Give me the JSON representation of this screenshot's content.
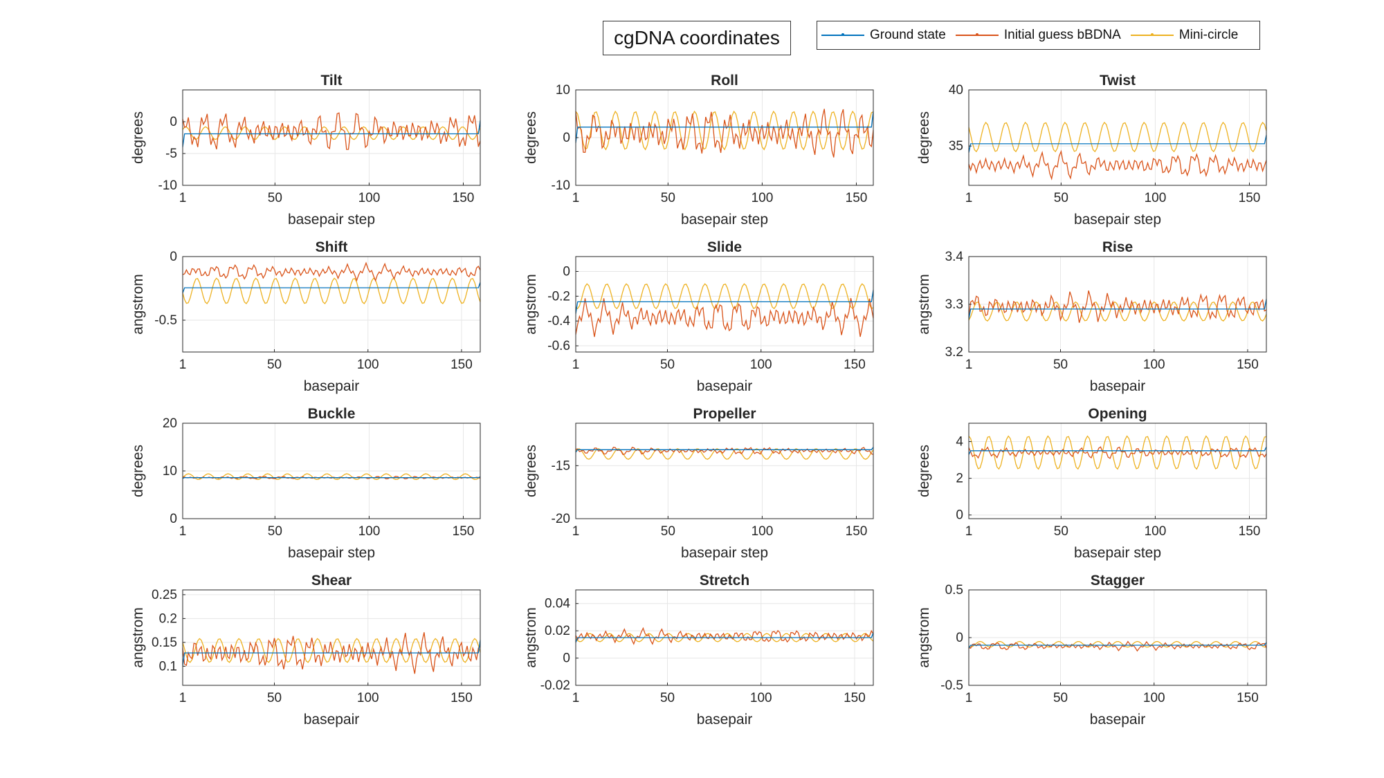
{
  "figure_title": "cgDNA coordinates",
  "legend": {
    "entries": [
      {
        "name": "Ground state",
        "color": "#0072BD"
      },
      {
        "name": "Initial guess bBDNA",
        "color": "#D95319"
      },
      {
        "name": "Mini-circle",
        "color": "#EDB120"
      }
    ],
    "placement": "top-right"
  },
  "chart_data": [
    {
      "type": "line",
      "title": "Tilt",
      "xlabel": "basepair step",
      "ylabel": "degrees",
      "xlim": [
        1,
        159
      ],
      "ylim": [
        -10,
        5
      ],
      "xticks": [
        "1",
        "50",
        "100",
        "150"
      ],
      "yticks": [
        "-10",
        "-5",
        "0"
      ],
      "ytick_values": [
        -10,
        -5,
        0
      ],
      "grid": true,
      "ground": -1.9,
      "initial": {
        "mean": -1.5,
        "amp": 3.5
      },
      "minicircle": {
        "mean": -1.8,
        "amp": 1.0
      }
    },
    {
      "type": "line",
      "title": "Roll",
      "xlabel": "basepair step",
      "ylabel": "degrees",
      "xlim": [
        1,
        159
      ],
      "ylim": [
        -10,
        10
      ],
      "xticks": [
        "1",
        "50",
        "100",
        "150"
      ],
      "yticks": [
        "-10",
        "0",
        "10"
      ],
      "ytick_values": [
        -10,
        0,
        10
      ],
      "grid": true,
      "ground": 2.2,
      "initial": {
        "mean": 1.0,
        "amp": 5.5
      },
      "minicircle": {
        "mean": 1.5,
        "amp": 4.0
      }
    },
    {
      "type": "line",
      "title": "Twist",
      "xlabel": "basepair step",
      "ylabel": "degrees",
      "xlim": [
        1,
        159
      ],
      "ylim": [
        31.5,
        40
      ],
      "xticks": [
        "1",
        "50",
        "100",
        "150"
      ],
      "yticks": [
        "35",
        "40"
      ],
      "ytick_values": [
        35,
        40
      ],
      "grid": true,
      "ground": 35.2,
      "initial": {
        "mean": 33.3,
        "amp": 1.3
      },
      "minicircle": {
        "mean": 35.8,
        "amp": 1.3
      }
    },
    {
      "type": "line",
      "title": "Shift",
      "xlabel": "basepair",
      "ylabel": "angstrom",
      "xlim": [
        1,
        160
      ],
      "ylim": [
        -0.75,
        0
      ],
      "xticks": [
        "1",
        "50",
        "100",
        "150"
      ],
      "yticks": [
        "-0.5",
        "0"
      ],
      "ytick_values": [
        -0.5,
        0
      ],
      "grid": true,
      "ground": -0.245,
      "initial": {
        "mean": -0.12,
        "amp": 0.07
      },
      "minicircle": {
        "mean": -0.27,
        "amp": 0.1
      }
    },
    {
      "type": "line",
      "title": "Slide",
      "xlabel": "basepair",
      "ylabel": "angstrom",
      "xlim": [
        1,
        160
      ],
      "ylim": [
        -0.65,
        0.12
      ],
      "xticks": [
        "1",
        "50",
        "100",
        "150"
      ],
      "yticks": [
        "-0.6",
        "-0.4",
        "-0.2",
        "0"
      ],
      "ytick_values": [
        -0.6,
        -0.4,
        -0.2,
        0
      ],
      "grid": true,
      "ground": -0.245,
      "initial": {
        "mean": -0.37,
        "amp": 0.16
      },
      "minicircle": {
        "mean": -0.2,
        "amp": 0.1
      }
    },
    {
      "type": "line",
      "title": "Rise",
      "xlabel": "basepair",
      "ylabel": "angstrom",
      "xlim": [
        1,
        160
      ],
      "ylim": [
        3.2,
        3.4
      ],
      "xticks": [
        "1",
        "50",
        "100",
        "150"
      ],
      "yticks": [
        "3.2",
        "3.3",
        "3.4"
      ],
      "ytick_values": [
        3.2,
        3.3,
        3.4
      ],
      "grid": true,
      "ground": 3.29,
      "initial": {
        "mean": 3.295,
        "amp": 0.035
      },
      "minicircle": {
        "mean": 3.285,
        "amp": 0.02
      }
    },
    {
      "type": "line",
      "title": "Buckle",
      "xlabel": "basepair step",
      "ylabel": "degrees",
      "xlim": [
        1,
        159
      ],
      "ylim": [
        0,
        20
      ],
      "xticks": [
        "1",
        "50",
        "100",
        "150"
      ],
      "yticks": [
        "0",
        "10",
        "20"
      ],
      "ytick_values": [
        0,
        10,
        20
      ],
      "grid": true,
      "ground": 8.6,
      "initial": {
        "mean": 8.6,
        "amp": 0.3
      },
      "minicircle": {
        "mean": 8.8,
        "amp": 0.6
      }
    },
    {
      "type": "line",
      "title": "Propeller",
      "xlabel": "basepair step",
      "ylabel": "degrees",
      "xlim": [
        1,
        159
      ],
      "ylim": [
        -20,
        -11
      ],
      "xticks": [
        "1",
        "50",
        "100",
        "150"
      ],
      "yticks": [
        "-20",
        "-15"
      ],
      "ytick_values": [
        -20,
        -15
      ],
      "grid": true,
      "ground": -13.5,
      "initial": {
        "mean": -13.6,
        "amp": 0.4
      },
      "minicircle": {
        "mean": -13.9,
        "amp": 0.5
      }
    },
    {
      "type": "line",
      "title": "Opening",
      "xlabel": "basepair step",
      "ylabel": "degrees",
      "xlim": [
        1,
        159
      ],
      "ylim": [
        -0.2,
        5
      ],
      "xticks": [
        "1",
        "50",
        "100",
        "150"
      ],
      "yticks": [
        "0",
        "2",
        "4"
      ],
      "ytick_values": [
        0,
        2,
        4
      ],
      "grid": true,
      "ground": 3.5,
      "initial": {
        "mean": 3.4,
        "amp": 0.35
      },
      "minicircle": {
        "mean": 3.4,
        "amp": 0.9
      }
    },
    {
      "type": "line",
      "title": "Shear",
      "xlabel": "basepair",
      "ylabel": "angstrom",
      "xlim": [
        1,
        160
      ],
      "ylim": [
        0.06,
        0.26
      ],
      "xticks": [
        "1",
        "50",
        "100",
        "150"
      ],
      "yticks": [
        "0.1",
        "0.15",
        "0.2",
        "0.25"
      ],
      "ytick_values": [
        0.1,
        0.15,
        0.2,
        0.25
      ],
      "grid": true,
      "ground": 0.128,
      "initial": {
        "mean": 0.128,
        "amp": 0.045
      },
      "minicircle": {
        "mean": 0.133,
        "amp": 0.025
      }
    },
    {
      "type": "line",
      "title": "Stretch",
      "xlabel": "basepair",
      "ylabel": "angstrom",
      "xlim": [
        1,
        160
      ],
      "ylim": [
        -0.02,
        0.05
      ],
      "xticks": [
        "1",
        "50",
        "100",
        "150"
      ],
      "yticks": [
        "-0.02",
        "0",
        "0.02",
        "0.04"
      ],
      "ytick_values": [
        -0.02,
        0,
        0.02,
        0.04
      ],
      "grid": true,
      "ground": 0.015,
      "initial": {
        "mean": 0.016,
        "amp": 0.006
      },
      "minicircle": {
        "mean": 0.015,
        "amp": 0.003
      }
    },
    {
      "type": "line",
      "title": "Stagger",
      "xlabel": "basepair",
      "ylabel": "angstrom",
      "xlim": [
        1,
        160
      ],
      "ylim": [
        -0.5,
        0.5
      ],
      "xticks": [
        "1",
        "50",
        "100",
        "150"
      ],
      "yticks": [
        "-0.5",
        "0",
        "0.5"
      ],
      "ytick_values": [
        -0.5,
        0,
        0.5
      ],
      "grid": true,
      "ground": -0.08,
      "initial": {
        "mean": -0.09,
        "amp": 0.05
      },
      "minicircle": {
        "mean": -0.07,
        "amp": 0.03
      }
    }
  ]
}
